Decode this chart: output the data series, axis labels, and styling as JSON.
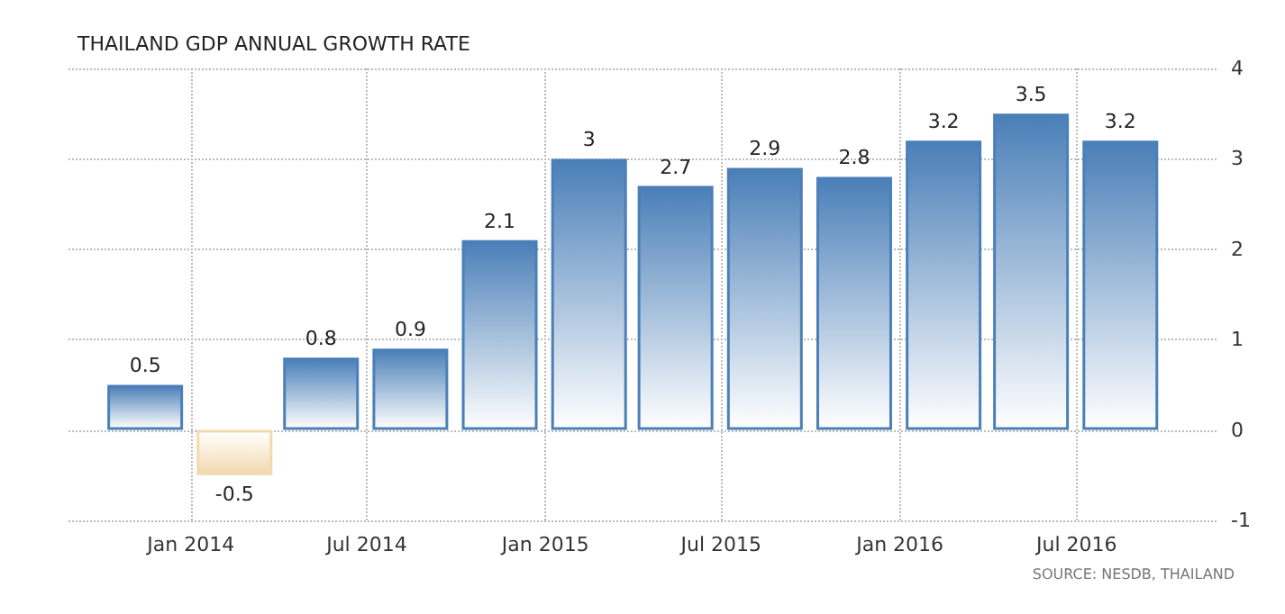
{
  "chart_data": {
    "type": "bar",
    "title": "THAILAND GDP ANNUAL GROWTH RATE",
    "x": [
      "2013-11-15",
      "2014-02-15",
      "2014-05-15",
      "2014-08-15",
      "2014-11-15",
      "2015-02-15",
      "2015-05-15",
      "2015-08-15",
      "2015-11-15",
      "2016-02-15",
      "2016-05-15",
      "2016-08-15"
    ],
    "values": [
      0.5,
      -0.5,
      0.8,
      0.9,
      2.1,
      3,
      2.7,
      2.9,
      2.8,
      3.2,
      3.5,
      3.2
    ],
    "colors": [
      "#4a7fb8",
      "#f2d9b0",
      "#4a7fb8",
      "#4a7fb8",
      "#4a7fb8",
      "#4a7fb8",
      "#4a7fb8",
      "#4a7fb8",
      "#4a7fb8",
      "#4a7fb8",
      "#4a7fb8",
      "#4a7fb8"
    ],
    "data_labels": true,
    "xlim": [
      "2013-08-28",
      "2016-11-22"
    ],
    "xticks": [
      {
        "value": "2014-01-01",
        "label": "Jan 2014"
      },
      {
        "value": "2014-07-01",
        "label": "Jul 2014"
      },
      {
        "value": "2015-01-01",
        "label": "Jan 2015"
      },
      {
        "value": "2015-07-01",
        "label": "Jul 2015"
      },
      {
        "value": "2016-01-01",
        "label": "Jan 2016"
      },
      {
        "value": "2016-07-01",
        "label": "Jul 2016"
      }
    ],
    "ylim": [
      -1,
      4
    ],
    "yticks": [
      -1,
      0,
      1,
      2,
      3,
      4
    ],
    "grid": true,
    "annotations": [
      "SOURCE: NESDB, THAILAND"
    ]
  }
}
